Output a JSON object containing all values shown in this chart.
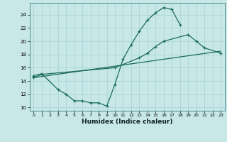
{
  "bg_color": "#c8e8e8",
  "grid_color": "#b0d8d8",
  "line_color": "#1a6b5a",
  "xlabel": "Humidex (Indice chaleur)",
  "xlim": [
    -0.5,
    23.5
  ],
  "ylim": [
    9.5,
    25.8
  ],
  "xticks": [
    0,
    1,
    2,
    3,
    4,
    5,
    6,
    7,
    8,
    9,
    10,
    11,
    12,
    13,
    14,
    15,
    16,
    17,
    18,
    19,
    20,
    21,
    22,
    23
  ],
  "yticks": [
    10,
    12,
    14,
    16,
    18,
    20,
    22,
    24
  ],
  "curve1_x": [
    0,
    1,
    3,
    4,
    5,
    6,
    7,
    8,
    9,
    10,
    11,
    12,
    13,
    14,
    15,
    16,
    17,
    18
  ],
  "curve1_y": [
    14.8,
    15.1,
    12.7,
    12.0,
    11.0,
    11.0,
    10.7,
    10.7,
    10.2,
    13.5,
    17.3,
    19.5,
    21.5,
    23.2,
    24.3,
    25.1,
    24.8,
    22.5
  ],
  "curve2_x": [
    0,
    1,
    10,
    13,
    14,
    15,
    16,
    19,
    20,
    21,
    23
  ],
  "curve2_y": [
    14.5,
    15.0,
    16.0,
    17.5,
    18.2,
    19.2,
    20.0,
    21.0,
    20.0,
    19.0,
    18.2
  ],
  "curve3_x": [
    0,
    23
  ],
  "curve3_y": [
    14.5,
    18.5
  ]
}
